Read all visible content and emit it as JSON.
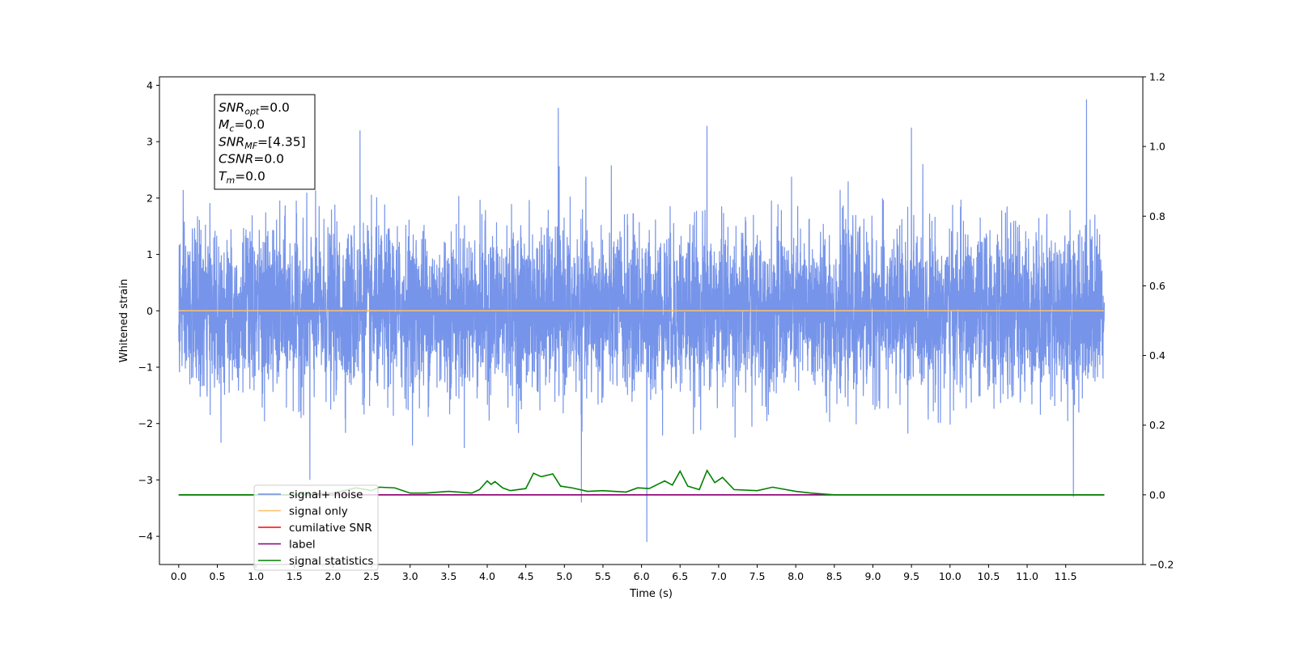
{
  "chart_data": {
    "type": "line",
    "xlabel": "Time (s)",
    "ylabel": "Whitened strain",
    "xlim": [
      -0.25,
      12.5
    ],
    "ylim": [
      -4.5,
      4.15
    ],
    "y2lim": [
      -0.2,
      1.2
    ],
    "x_ticks": [
      0.0,
      0.5,
      1.0,
      1.5,
      2.0,
      2.5,
      3.0,
      3.5,
      4.0,
      4.5,
      5.0,
      5.5,
      6.0,
      6.5,
      7.0,
      7.5,
      8.0,
      8.5,
      9.0,
      9.5,
      10.0,
      10.5,
      11.0,
      11.5
    ],
    "x_tick_labels": [
      "0.0",
      "0.5",
      "1.0",
      "1.5",
      "2.0",
      "2.5",
      "3.0",
      "3.5",
      "4.0",
      "4.5",
      "5.0",
      "5.5",
      "6.0",
      "6.5",
      "7.0",
      "7.5",
      "8.0",
      "8.5",
      "9.0",
      "9.5",
      "10.0",
      "10.5",
      "11.0",
      "11.5"
    ],
    "y_ticks": [
      -4,
      -3,
      -2,
      -1,
      0,
      1,
      2,
      3,
      4
    ],
    "y_tick_labels": [
      "−4",
      "−3",
      "−2",
      "−1",
      "0",
      "1",
      "2",
      "3",
      "4"
    ],
    "y2_ticks": [
      -0.2,
      0.0,
      0.2,
      0.4,
      0.6,
      0.8,
      1.0,
      1.2
    ],
    "y2_tick_labels": [
      "−0.2",
      "0.0",
      "0.2",
      "0.4",
      "0.6",
      "0.8",
      "1.0",
      "1.2"
    ],
    "grid": false,
    "legend_placement": "lower-left",
    "series": [
      {
        "name": "signal+ noise",
        "axis": "left",
        "color": "#6f8ee8",
        "x_range": [
          0.0,
          12.0
        ],
        "description_values": {
          "typical_min": -2.0,
          "typical_max": 2.0,
          "peak_max": 3.75,
          "peak_min": -4.1
        }
      },
      {
        "name": "signal only",
        "axis": "left",
        "color": "#ffbf66",
        "x": [
          0.0,
          12.0
        ],
        "y": [
          0.0,
          0.0
        ]
      },
      {
        "name": "cumilative SNR",
        "axis": "right",
        "color": "#ff0000",
        "x": [
          0.0,
          12.0
        ],
        "y": [
          0.0,
          0.0
        ]
      },
      {
        "name": "label",
        "axis": "right",
        "color": "#800080",
        "x": [
          0.0,
          12.0
        ],
        "y": [
          0.0,
          0.0
        ]
      },
      {
        "name": "signal statistics",
        "axis": "right",
        "color": "#008000",
        "x": [
          0.0,
          0.5,
          1.0,
          1.5,
          2.0,
          2.2,
          2.3,
          2.5,
          2.6,
          2.8,
          3.0,
          3.2,
          3.5,
          3.8,
          3.9,
          4.0,
          4.05,
          4.1,
          4.2,
          4.3,
          4.5,
          4.6,
          4.7,
          4.85,
          4.95,
          5.1,
          5.3,
          5.5,
          5.8,
          5.95,
          6.1,
          6.3,
          6.4,
          6.5,
          6.6,
          6.75,
          6.85,
          6.95,
          7.05,
          7.2,
          7.5,
          7.7,
          8.0,
          8.2,
          8.5,
          9.0,
          10.0,
          11.0,
          12.0
        ],
        "y": [
          0.0,
          0.0,
          0.0,
          0.0,
          0.005,
          0.015,
          0.02,
          0.012,
          0.022,
          0.02,
          0.005,
          0.005,
          0.01,
          0.005,
          0.015,
          0.04,
          0.03,
          0.038,
          0.02,
          0.012,
          0.018,
          0.062,
          0.052,
          0.06,
          0.025,
          0.02,
          0.01,
          0.012,
          0.008,
          0.02,
          0.018,
          0.04,
          0.028,
          0.068,
          0.025,
          0.015,
          0.07,
          0.035,
          0.05,
          0.015,
          0.012,
          0.022,
          0.01,
          0.005,
          0.0,
          0.0,
          0.0,
          0.0,
          0.0
        ]
      }
    ],
    "annotation": {
      "lines": [
        {
          "name": "SNR",
          "sub": "opt",
          "value": "=0.0"
        },
        {
          "name": "M",
          "sub": "c",
          "value": "=0.0"
        },
        {
          "name": "SNR",
          "sub": "MF",
          "value": "=[4.35]"
        },
        {
          "name": "CSNR",
          "sub": "",
          "value": "=0.0"
        },
        {
          "name": "T",
          "sub": "m",
          "value": "=0.0"
        }
      ]
    }
  }
}
